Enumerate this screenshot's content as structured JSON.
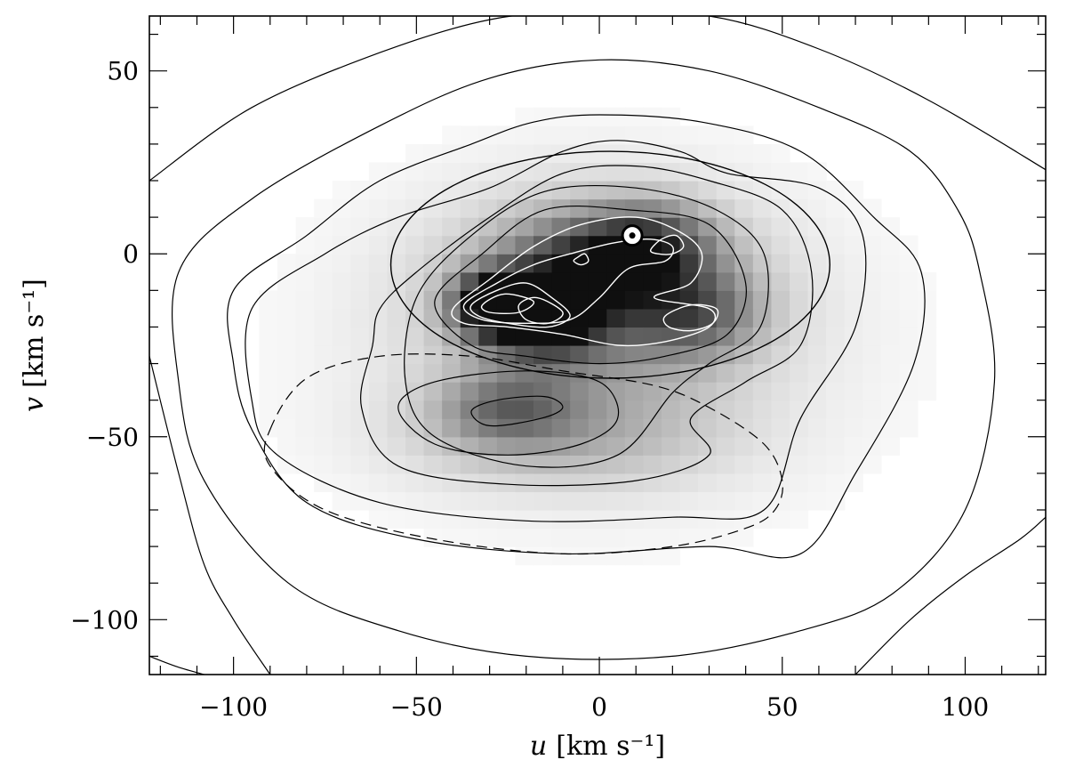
{
  "chart_data": {
    "type": "heatmap",
    "title": "",
    "xlabel_var": "u",
    "xlabel_unit": "[km s⁻¹]",
    "ylabel_var": "v",
    "ylabel_unit": "[km s⁻¹]",
    "xlim": [
      -123,
      122
    ],
    "ylim": [
      -115,
      65
    ],
    "x_ticks": [
      {
        "value": -100,
        "label": "−100"
      },
      {
        "value": -50,
        "label": "−50"
      },
      {
        "value": 0,
        "label": "0"
      },
      {
        "value": 50,
        "label": "50"
      },
      {
        "value": 100,
        "label": "100"
      }
    ],
    "y_ticks": [
      {
        "value": 50,
        "label": "50"
      },
      {
        "value": 0,
        "label": "0"
      },
      {
        "value": -50,
        "label": "−50"
      },
      {
        "value": -100,
        "label": "−100"
      }
    ],
    "x_minor_step": 10,
    "y_minor_step": 10,
    "grid": false,
    "density_peaks": [
      {
        "u": -28,
        "v": -14,
        "amplitude": 1.0,
        "su": 8,
        "sv": 6
      },
      {
        "u": -14,
        "v": -18,
        "amplitude": 0.75,
        "su": 10,
        "sv": 7
      },
      {
        "u": -5,
        "v": -4,
        "amplitude": 0.45,
        "su": 14,
        "sv": 9
      },
      {
        "u": 14,
        "v": 2,
        "amplitude": 0.55,
        "su": 12,
        "sv": 8
      },
      {
        "u": 26,
        "v": -16,
        "amplitude": 0.4,
        "su": 12,
        "sv": 8
      },
      {
        "u": 0,
        "v": -12,
        "amplitude": 0.45,
        "su": 28,
        "sv": 18
      },
      {
        "u": -25,
        "v": -42,
        "amplitude": 0.38,
        "su": 13,
        "sv": 7
      },
      {
        "u": -10,
        "v": -50,
        "amplitude": 0.22,
        "su": 30,
        "sv": 10
      },
      {
        "u": 0,
        "v": -25,
        "amplitude": 0.12,
        "su": 55,
        "sv": 35
      }
    ],
    "contours": [
      {
        "style": "solid",
        "color": "#000000",
        "points": [
          [
            -123,
            20
          ],
          [
            -95,
            40
          ],
          [
            -60,
            55
          ],
          [
            -30,
            64
          ],
          [
            -5,
            66
          ],
          [
            30,
            65
          ],
          [
            60,
            56
          ],
          [
            90,
            42
          ],
          [
            122,
            23
          ]
        ]
      },
      {
        "style": "solid",
        "color": "#000000",
        "points": [
          [
            -115,
            -5
          ],
          [
            -95,
            15
          ],
          [
            -60,
            35
          ],
          [
            -30,
            48
          ],
          [
            0,
            53
          ],
          [
            30,
            50
          ],
          [
            60,
            40
          ],
          [
            85,
            28
          ],
          [
            98,
            12
          ],
          [
            104,
            -5
          ],
          [
            108,
            -35
          ],
          [
            100,
            -70
          ],
          [
            80,
            -93
          ],
          [
            55,
            -103
          ],
          [
            20,
            -110
          ],
          [
            -20,
            -110
          ],
          [
            -55,
            -103
          ],
          [
            -85,
            -90
          ],
          [
            -108,
            -62
          ],
          [
            -115,
            -35
          ],
          [
            -115,
            -5
          ]
        ]
      },
      {
        "style": "solid",
        "color": "#000000",
        "points": [
          [
            -100,
            -10
          ],
          [
            -80,
            5
          ],
          [
            -60,
            20
          ],
          [
            -35,
            30
          ],
          [
            -18,
            36
          ],
          [
            0,
            38
          ],
          [
            28,
            36
          ],
          [
            55,
            28
          ],
          [
            75,
            10
          ],
          [
            88,
            -5
          ],
          [
            86,
            -30
          ],
          [
            70,
            -60
          ],
          [
            55,
            -82
          ],
          [
            30,
            -80
          ],
          [
            -10,
            -82
          ],
          [
            -50,
            -78
          ],
          [
            -80,
            -68
          ],
          [
            -95,
            -48
          ],
          [
            -100,
            -30
          ],
          [
            -100,
            -10
          ]
        ]
      },
      {
        "style": "solid",
        "color": "#000000",
        "points": [
          [
            -95,
            -15
          ],
          [
            -75,
            0
          ],
          [
            -55,
            10
          ],
          [
            -30,
            18
          ],
          [
            -10,
            28
          ],
          [
            5,
            31
          ],
          [
            22,
            28
          ],
          [
            35,
            22
          ],
          [
            60,
            18
          ],
          [
            72,
            5
          ],
          [
            70,
            -20
          ],
          [
            55,
            -45
          ],
          [
            45,
            -70
          ],
          [
            20,
            -72
          ],
          [
            -20,
            -73
          ],
          [
            -60,
            -68
          ],
          [
            -88,
            -55
          ],
          [
            -95,
            -40
          ],
          [
            -95,
            -15
          ]
        ]
      },
      {
        "style": "solid",
        "color": "#000000",
        "points": [
          [
            -60,
            -15
          ],
          [
            -50,
            -5
          ],
          [
            -30,
            10
          ],
          [
            -10,
            22
          ],
          [
            10,
            24
          ],
          [
            30,
            20
          ],
          [
            50,
            12
          ],
          [
            58,
            -5
          ],
          [
            55,
            -25
          ],
          [
            40,
            -35
          ],
          [
            25,
            -45
          ],
          [
            30,
            -55
          ],
          [
            10,
            -62
          ],
          [
            -25,
            -63
          ],
          [
            -55,
            -58
          ],
          [
            -65,
            -42
          ],
          [
            -62,
            -25
          ],
          [
            -60,
            -15
          ]
        ]
      },
      {
        "style": "solid",
        "color": "#000000",
        "points": [
          [
            -50,
            -12
          ],
          [
            -35,
            5
          ],
          [
            -15,
            17
          ],
          [
            10,
            18
          ],
          [
            32,
            12
          ],
          [
            45,
            0
          ],
          [
            44,
            -20
          ],
          [
            30,
            -30
          ],
          [
            20,
            -38
          ],
          [
            5,
            -55
          ],
          [
            -20,
            -58
          ],
          [
            -45,
            -50
          ],
          [
            -53,
            -35
          ],
          [
            -50,
            -12
          ]
        ]
      },
      {
        "style": "solid",
        "color": "#000000",
        "points": [
          [
            -45,
            -13
          ],
          [
            -32,
            0
          ],
          [
            -15,
            12
          ],
          [
            8,
            12
          ],
          [
            30,
            8
          ],
          [
            40,
            -8
          ],
          [
            35,
            -22
          ],
          [
            18,
            -28
          ],
          [
            0,
            -30
          ],
          [
            -20,
            -28
          ],
          [
            -35,
            -25
          ],
          [
            -45,
            -13
          ]
        ]
      },
      {
        "style": "solid",
        "color": "#000000",
        "points": [
          [
            -55,
            -42
          ],
          [
            -45,
            -35
          ],
          [
            -20,
            -32
          ],
          [
            0,
            -35
          ],
          [
            5,
            -45
          ],
          [
            -5,
            -52
          ],
          [
            -25,
            -55
          ],
          [
            -45,
            -52
          ],
          [
            -55,
            -42
          ]
        ]
      },
      {
        "style": "solid",
        "color": "#000000",
        "points": [
          [
            -35,
            -43
          ],
          [
            -28,
            -40
          ],
          [
            -15,
            -39
          ],
          [
            -10,
            -42
          ],
          [
            -16,
            -45
          ],
          [
            -30,
            -47
          ],
          [
            -35,
            -43
          ]
        ]
      },
      {
        "style": "solid",
        "color": "#000000",
        "points": [
          [
            -123,
            -28
          ],
          [
            -115,
            -60
          ],
          [
            -108,
            -85
          ],
          [
            -100,
            -100
          ],
          [
            -90,
            -115
          ]
        ]
      },
      {
        "style": "solid",
        "color": "#000000",
        "points": [
          [
            70,
            -115
          ],
          [
            85,
            -100
          ],
          [
            100,
            -88
          ],
          [
            115,
            -78
          ],
          [
            122,
            -72
          ]
        ]
      },
      {
        "style": "solid",
        "color": "#000000",
        "points": [
          [
            -123,
            -110
          ],
          [
            -115,
            -113
          ],
          [
            -108,
            -115
          ]
        ]
      },
      {
        "style": "dashed",
        "color": "#000000",
        "points": [
          [
            -90,
            -48
          ],
          [
            -80,
            -34
          ],
          [
            -60,
            -28
          ],
          [
            -35,
            -28
          ],
          [
            -10,
            -32
          ],
          [
            15,
            -36
          ],
          [
            30,
            -42
          ],
          [
            45,
            -52
          ],
          [
            50,
            -62
          ],
          [
            48,
            -70
          ],
          [
            40,
            -75
          ],
          [
            20,
            -80
          ],
          [
            -10,
            -82
          ],
          [
            -45,
            -78
          ],
          [
            -75,
            -70
          ],
          [
            -90,
            -58
          ],
          [
            -90,
            -48
          ]
        ]
      },
      {
        "style": "solid",
        "color": "#ffffff",
        "points": [
          [
            -40,
            -15
          ],
          [
            -30,
            -7
          ],
          [
            -18,
            2
          ],
          [
            -5,
            8
          ],
          [
            10,
            10
          ],
          [
            22,
            6
          ],
          [
            28,
            0
          ],
          [
            25,
            -8
          ],
          [
            15,
            -12
          ],
          [
            30,
            -15
          ],
          [
            30,
            -20
          ],
          [
            18,
            -24
          ],
          [
            5,
            -25
          ],
          [
            -10,
            -22
          ],
          [
            -25,
            -20
          ],
          [
            -37,
            -19
          ],
          [
            -40,
            -15
          ]
        ]
      },
      {
        "style": "solid",
        "color": "#ffffff",
        "points": [
          [
            -37,
            -14
          ],
          [
            -28,
            -8
          ],
          [
            -18,
            -3
          ],
          [
            -8,
            0
          ],
          [
            4,
            3
          ],
          [
            14,
            4
          ],
          [
            20,
            2
          ],
          [
            18,
            -2
          ],
          [
            8,
            -4
          ],
          [
            0,
            -12
          ],
          [
            -8,
            -18
          ],
          [
            -20,
            -19
          ],
          [
            -32,
            -18
          ],
          [
            -37,
            -14
          ]
        ]
      },
      {
        "style": "solid",
        "color": "#ffffff",
        "points": [
          [
            -35,
            -14
          ],
          [
            -28,
            -10
          ],
          [
            -20,
            -8
          ],
          [
            -13,
            -12
          ],
          [
            -8,
            -17
          ],
          [
            -14,
            -20
          ],
          [
            -25,
            -19
          ],
          [
            -33,
            -17
          ],
          [
            -35,
            -14
          ]
        ]
      },
      {
        "style": "solid",
        "color": "#ffffff",
        "points": [
          [
            -32,
            -14
          ],
          [
            -26,
            -11
          ],
          [
            -18,
            -13
          ],
          [
            -22,
            -16
          ],
          [
            -30,
            -16
          ],
          [
            -32,
            -14
          ]
        ]
      },
      {
        "style": "solid",
        "color": "#ffffff",
        "points": [
          [
            -22,
            -14
          ],
          [
            -17,
            -12
          ],
          [
            -10,
            -16
          ],
          [
            -14,
            -19
          ],
          [
            -20,
            -18
          ],
          [
            -22,
            -14
          ]
        ]
      },
      {
        "style": "solid",
        "color": "#ffffff",
        "points": [
          [
            -6,
            -1
          ],
          [
            -4,
            0
          ],
          [
            -3,
            -2
          ],
          [
            -5,
            -3
          ],
          [
            -7,
            -2
          ],
          [
            -6,
            -1
          ]
        ]
      },
      {
        "style": "solid",
        "color": "#ffffff",
        "points": [
          [
            14,
            1
          ],
          [
            17,
            4
          ],
          [
            21,
            5
          ],
          [
            23,
            2
          ],
          [
            20,
            0
          ],
          [
            16,
            0
          ],
          [
            14,
            1
          ]
        ]
      },
      {
        "style": "solid",
        "color": "#ffffff",
        "points": [
          [
            18,
            -17
          ],
          [
            25,
            -14
          ],
          [
            32,
            -15
          ],
          [
            31,
            -19
          ],
          [
            25,
            -21
          ],
          [
            19,
            -20
          ],
          [
            18,
            -17
          ]
        ]
      }
    ],
    "velocity_ellipse": {
      "cx": 3,
      "cy": -3,
      "rx": 60,
      "ry": 31
    },
    "sun_marker": {
      "u": 9,
      "v": 5
    }
  }
}
